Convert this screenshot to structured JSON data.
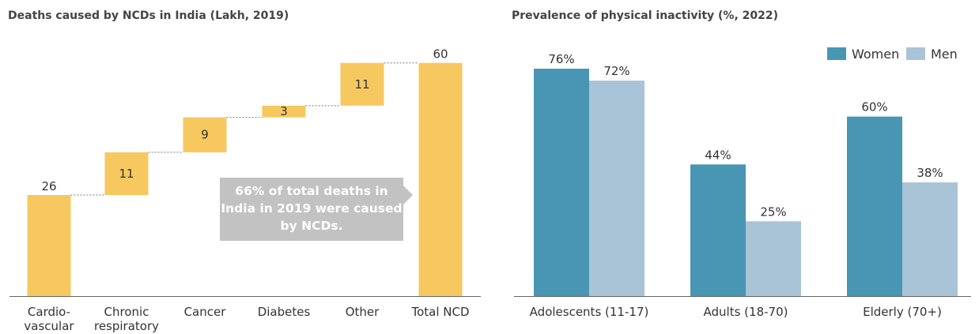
{
  "chart_data": [
    {
      "type": "bar",
      "subtype": "waterfall",
      "title": "Deaths caused by NCDs in India (Lakh, 2019)",
      "categories": [
        "Cardio-\nvascular",
        "Chronic\nrespiratory",
        "Cancer",
        "Diabetes",
        "Other",
        "Total NCD"
      ],
      "values": [
        26,
        11,
        9,
        3,
        11,
        60
      ],
      "value_labels": [
        "26",
        "11",
        "9",
        "3",
        "11",
        "60"
      ],
      "ylim": [
        0,
        64
      ],
      "grid": false,
      "bar_color": "#f6c85f",
      "annotation": "66% of total deaths in India in 2019 were caused by NCDs."
    },
    {
      "type": "bar",
      "title": "Prevalence of physical inactivity (%, 2022)",
      "categories": [
        "Adolescents (11-17)",
        "Adults (18-70)",
        "Elderly (70+)"
      ],
      "series": [
        {
          "name": "Women",
          "values": [
            76,
            44,
            60
          ],
          "value_labels": [
            "76%",
            "44%",
            "60%"
          ],
          "color": "#4896b4"
        },
        {
          "name": "Men",
          "values": [
            72,
            25,
            38
          ],
          "value_labels": [
            "72%",
            "25%",
            "38%"
          ],
          "color": "#a9c4d6"
        }
      ],
      "ylim": [
        0,
        80
      ],
      "grid": false,
      "legend": "top-right"
    }
  ]
}
